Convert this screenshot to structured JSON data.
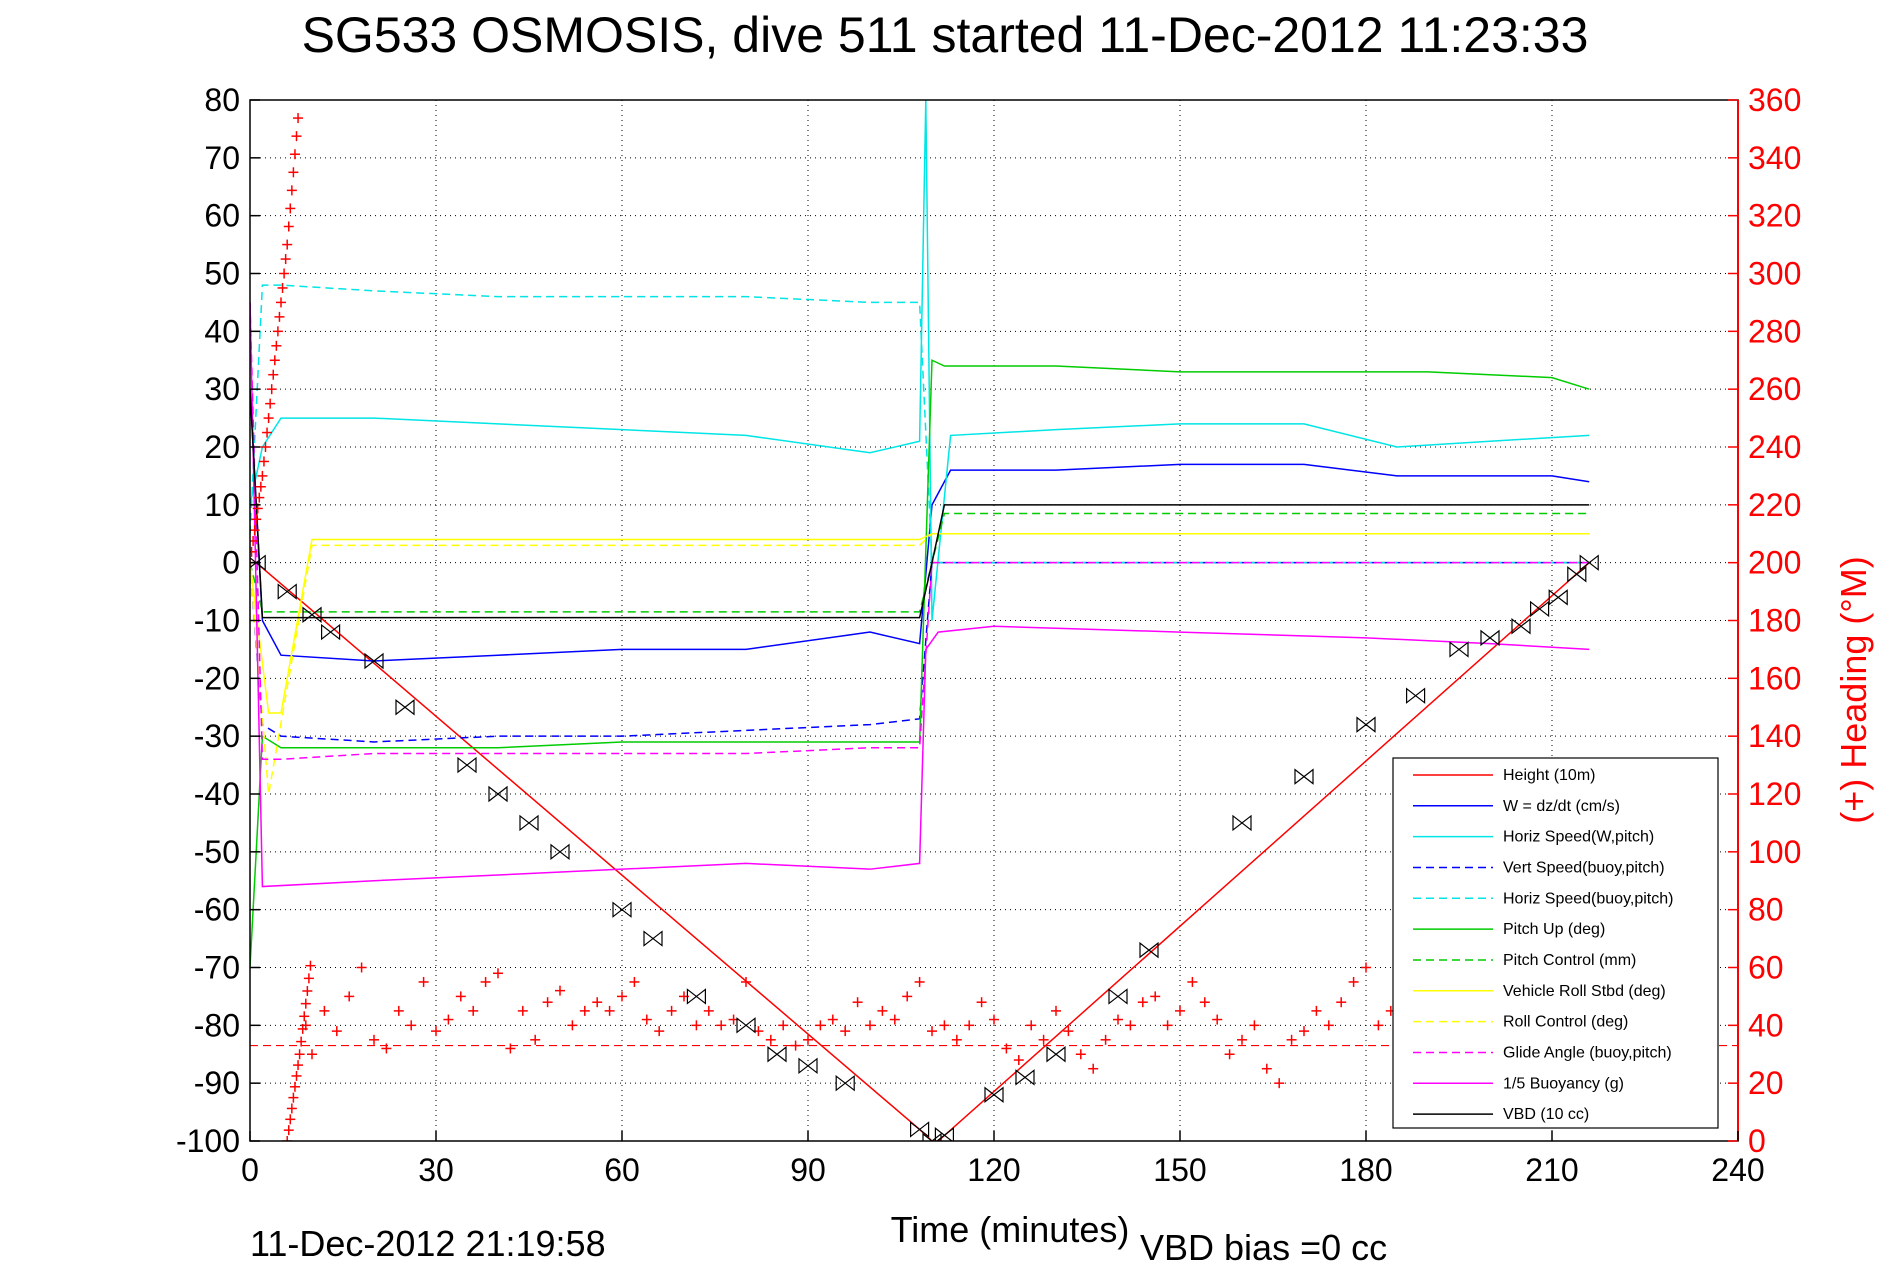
{
  "chart_data": {
    "type": "line",
    "title": "SG533 OSMOSIS, dive 511 started 11-Dec-2012 11:23:33",
    "xlabel": "Time (minutes)",
    "ylabel_right": "(+) Heading (°M)",
    "xlim": [
      0,
      240
    ],
    "ylim": [
      -100,
      80
    ],
    "ylim_right": [
      0,
      360
    ],
    "x_ticks": [
      "0",
      "30",
      "60",
      "90",
      "120",
      "150",
      "180",
      "210",
      "240"
    ],
    "y_ticks": [
      "80",
      "70",
      "60",
      "50",
      "40",
      "30",
      "20",
      "10",
      "0",
      "-10",
      "-20",
      "-30",
      "-40",
      "-50",
      "-60",
      "-70",
      "-80",
      "-90",
      "-100"
    ],
    "y_ticks_right": [
      "360",
      "340",
      "320",
      "300",
      "280",
      "260",
      "240",
      "220",
      "200",
      "180",
      "160",
      "140",
      "120",
      "100",
      "80",
      "60",
      "40",
      "20",
      "0"
    ],
    "grid": true,
    "legend_position": "bottom-right",
    "footer_left": "11-Dec-2012 21:19:58",
    "footer_right": "VBD bias =0 cc",
    "series": [
      {
        "name": "Height (10m)",
        "color": "#ff0000",
        "style": "solid",
        "x": [
          0,
          1,
          108,
          110,
          111,
          216
        ],
        "y": [
          0,
          0,
          -98,
          -100,
          -100,
          0
        ]
      },
      {
        "name": "W = dz/dt (cm/s)",
        "color": "#0000ff",
        "style": "solid",
        "x": [
          0,
          2,
          5,
          20,
          40,
          60,
          80,
          100,
          108,
          110,
          113,
          130,
          150,
          170,
          185,
          200,
          210,
          216
        ],
        "y": [
          30,
          -10,
          -16,
          -17,
          -16,
          -15,
          -15,
          -12,
          -14,
          10,
          16,
          16,
          17,
          17,
          15,
          15,
          15,
          14
        ]
      },
      {
        "name": "Horiz Speed(W,pitch)",
        "color": "#00e5e5",
        "style": "solid",
        "x": [
          0,
          2,
          5,
          20,
          40,
          60,
          80,
          100,
          108,
          109,
          110,
          113,
          130,
          150,
          170,
          185,
          200,
          216
        ],
        "y": [
          10,
          20,
          25,
          25,
          24,
          23,
          22,
          19,
          21,
          80,
          -10,
          22,
          23,
          24,
          24,
          20,
          21,
          22
        ]
      },
      {
        "name": "Vert Speed(buoy,pitch)",
        "color": "#0000ff",
        "style": "dashed",
        "x": [
          0,
          2,
          5,
          20,
          40,
          60,
          80,
          100,
          108,
          110,
          113,
          150,
          180,
          216
        ],
        "y": [
          0,
          -28,
          -30,
          -31,
          -30,
          -30,
          -29,
          -28,
          -27,
          0,
          0,
          0,
          0,
          0
        ]
      },
      {
        "name": "Horiz Speed(buoy,pitch)",
        "color": "#00e5e5",
        "style": "dashed",
        "x": [
          0,
          2,
          5,
          20,
          40,
          60,
          80,
          100,
          108,
          110,
          216
        ],
        "y": [
          5,
          48,
          48,
          47,
          46,
          46,
          46,
          45,
          45,
          0,
          0
        ]
      },
      {
        "name": "Pitch Up (deg)",
        "color": "#00cc00",
        "style": "solid",
        "x": [
          0,
          2,
          5,
          20,
          40,
          60,
          80,
          100,
          108,
          110,
          112,
          130,
          150,
          170,
          190,
          210,
          216
        ],
        "y": [
          -70,
          -30,
          -32,
          -32,
          -32,
          -31,
          -31,
          -31,
          -31,
          35,
          34,
          34,
          33,
          33,
          33,
          32,
          30
        ]
      },
      {
        "name": "Pitch Control (mm)",
        "color": "#00cc00",
        "style": "dashed",
        "x": [
          0,
          2,
          108,
          110,
          112,
          216
        ],
        "y": [
          0,
          -8.5,
          -8.5,
          0,
          8.5,
          8.5
        ]
      },
      {
        "name": "Vehicle Roll Stbd (deg)",
        "color": "#ffff00",
        "style": "solid",
        "x": [
          0,
          3,
          5,
          10,
          20,
          40,
          60,
          80,
          100,
          108,
          110,
          115,
          130,
          150,
          170,
          190,
          210,
          216
        ],
        "y": [
          0,
          -26,
          -26,
          4,
          4,
          4,
          4,
          4,
          4,
          4,
          5,
          5,
          5,
          5,
          5,
          5,
          5,
          5
        ]
      },
      {
        "name": "Roll Control (deg)",
        "color": "#ffff00",
        "style": "dashed",
        "x": [
          0,
          3,
          10,
          20,
          60,
          108,
          110,
          216
        ],
        "y": [
          0,
          -40,
          3,
          3,
          3,
          3,
          5,
          5
        ]
      },
      {
        "name": "Glide Angle (buoy,pitch)",
        "color": "#ff00ff",
        "style": "dashed",
        "x": [
          0,
          2,
          5,
          20,
          40,
          60,
          80,
          100,
          108,
          110,
          216
        ],
        "y": [
          45,
          -34,
          -34,
          -33,
          -33,
          -33,
          -33,
          -32,
          -32,
          0,
          0
        ]
      },
      {
        "name": "1/5 Buoyancy (g)",
        "color": "#ff00ff",
        "style": "solid",
        "x": [
          0,
          2,
          20,
          40,
          60,
          80,
          100,
          108,
          109,
          111,
          120,
          150,
          180,
          200,
          216
        ],
        "y": [
          45,
          -56,
          -55,
          -54,
          -53,
          -52,
          -53,
          -52,
          -15,
          -12,
          -11,
          -12,
          -13,
          -14,
          -15
        ]
      },
      {
        "name": "VBD (10 cc)",
        "color": "#000000",
        "style": "solid",
        "x": [
          0,
          2,
          108,
          110,
          112,
          216
        ],
        "y": [
          30,
          -9.5,
          -9.5,
          0,
          10,
          10
        ]
      }
    ],
    "heading_series": {
      "name": "(+) Heading (°M)",
      "color": "#ff0000",
      "style": "markers-plus",
      "x": [
        9,
        10,
        12,
        14,
        16,
        18,
        20,
        22,
        24,
        26,
        28,
        30,
        32,
        34,
        36,
        38,
        40,
        42,
        44,
        46,
        48,
        50,
        52,
        54,
        56,
        58,
        60,
        62,
        64,
        66,
        68,
        70,
        72,
        74,
        76,
        78,
        80,
        82,
        84,
        86,
        88,
        90,
        92,
        94,
        96,
        98,
        100,
        102,
        104,
        106,
        108,
        110,
        112,
        114,
        116,
        118,
        120,
        122,
        124,
        126,
        128,
        130,
        132,
        134,
        136,
        138,
        140,
        142,
        144,
        146,
        148,
        150,
        152,
        154,
        156,
        158,
        160,
        162,
        164,
        166,
        168,
        170,
        172,
        174,
        176,
        178,
        180,
        182,
        184,
        186,
        188
      ],
      "y": [
        40,
        30,
        45,
        38,
        50,
        60,
        35,
        32,
        45,
        40,
        55,
        38,
        42,
        50,
        45,
        55,
        58,
        32,
        45,
        35,
        48,
        52,
        40,
        45,
        48,
        45,
        50,
        55,
        42,
        38,
        45,
        50,
        40,
        45,
        40,
        42,
        55,
        38,
        35,
        40,
        33,
        35,
        40,
        42,
        38,
        48,
        40,
        45,
        42,
        50,
        55,
        38,
        40,
        35,
        40,
        48,
        42,
        32,
        28,
        40,
        35,
        45,
        38,
        30,
        25,
        35,
        42,
        40,
        48,
        50,
        40,
        45,
        55,
        48,
        42,
        30,
        35,
        40,
        25,
        20,
        35,
        38,
        45,
        40,
        48,
        55,
        60,
        40,
        45,
        50,
        58
      ]
    },
    "heading_mean": 33,
    "descent_heading": {
      "x": [
        0,
        2,
        4,
        6,
        8
      ],
      "y": [
        200,
        230,
        270,
        310,
        360
      ]
    },
    "ascent_heading": {
      "x": [
        6,
        8,
        10
      ],
      "y": [
        0,
        30,
        65
      ]
    },
    "markers_height": {
      "x": [
        1,
        6,
        10,
        13,
        20,
        25,
        35,
        40,
        45,
        50,
        60,
        65,
        72,
        80,
        85,
        90,
        96,
        108,
        110,
        112,
        120,
        125,
        130,
        140,
        145,
        160,
        170,
        180,
        188,
        195,
        200,
        205,
        208,
        211,
        214,
        216
      ],
      "y": [
        0,
        -5,
        -9,
        -12,
        -17,
        -25,
        -35,
        -40,
        -45,
        -50,
        -60,
        -65,
        -75,
        -80,
        -85,
        -87,
        -90,
        -98,
        -100,
        -99,
        -92,
        -89,
        -85,
        -75,
        -67,
        -45,
        -37,
        -28,
        -23,
        -15,
        -13,
        -11,
        -8,
        -6,
        -2,
        0
      ]
    }
  }
}
